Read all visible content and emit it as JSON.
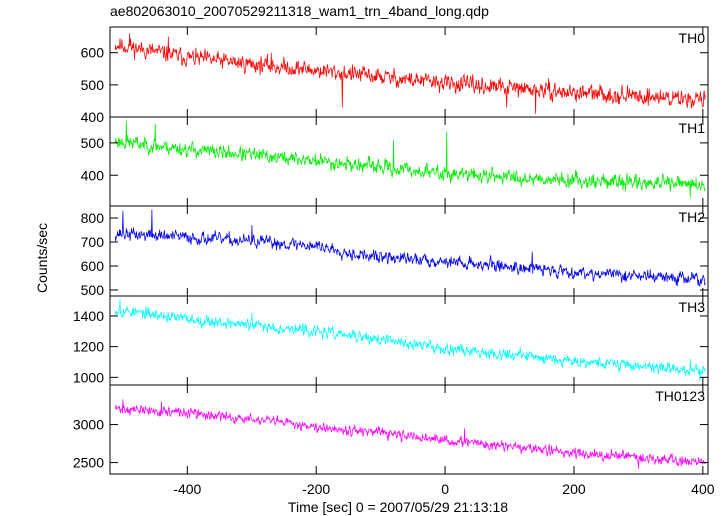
{
  "chart_data": {
    "type": "line",
    "title": "ae802063010_20070529211318_wam1_trn_4band_long.qdp",
    "xlabel": "Time [sec] 0 = 2007/05/29 21:13:18",
    "ylabel": "Counts/sec",
    "xlim": [
      -520,
      408
    ],
    "x_ticks": [
      -400,
      -200,
      0,
      200,
      400
    ],
    "grid": false,
    "panels": [
      {
        "name": "TH0",
        "color": "#ff0000",
        "ylim": [
          400,
          680
        ],
        "y_ticks": [
          400,
          500,
          600
        ],
        "noise": 28,
        "seed": 11,
        "anchors": [
          [
            -510,
            625
          ],
          [
            -400,
            585
          ],
          [
            -200,
            545
          ],
          [
            0,
            505
          ],
          [
            200,
            475
          ],
          [
            400,
            455
          ]
        ],
        "features": [
          [
            -490,
            660
          ],
          [
            -430,
            650
          ],
          [
            -270,
            600
          ],
          [
            -160,
            430
          ],
          [
            95,
            430
          ],
          [
            140,
            410
          ]
        ]
      },
      {
        "name": "TH1",
        "color": "#00ee00",
        "ylim": [
          305,
          580
        ],
        "y_ticks": [
          400,
          500
        ],
        "noise": 24,
        "seed": 23,
        "anchors": [
          [
            -510,
            505
          ],
          [
            -400,
            480
          ],
          [
            -200,
            445
          ],
          [
            0,
            405
          ],
          [
            200,
            385
          ],
          [
            400,
            370
          ]
        ],
        "features": [
          [
            -495,
            570
          ],
          [
            -450,
            560
          ],
          [
            -80,
            510
          ],
          [
            2,
            535
          ],
          [
            380,
            330
          ]
        ]
      },
      {
        "name": "TH2",
        "color": "#0000ee",
        "ylim": [
          475,
          850
        ],
        "y_ticks": [
          500,
          600,
          700,
          800
        ],
        "noise": 28,
        "seed": 37,
        "anchors": [
          [
            -510,
            735
          ],
          [
            -400,
            720
          ],
          [
            -200,
            685
          ],
          [
            -120,
            640
          ],
          [
            0,
            620
          ],
          [
            200,
            575
          ],
          [
            400,
            545
          ]
        ],
        "features": [
          [
            -500,
            830
          ],
          [
            -455,
            835
          ],
          [
            -300,
            770
          ],
          [
            135,
            660
          ],
          [
            360,
            515
          ]
        ]
      },
      {
        "name": "TH3",
        "color": "#00ffff",
        "ylim": [
          950,
          1530
        ],
        "y_ticks": [
          1000,
          1200,
          1400
        ],
        "noise": 40,
        "seed": 53,
        "anchors": [
          [
            -510,
            1440
          ],
          [
            -400,
            1380
          ],
          [
            -200,
            1300
          ],
          [
            0,
            1190
          ],
          [
            200,
            1110
          ],
          [
            400,
            1040
          ]
        ],
        "features": [
          [
            -505,
            1510
          ],
          [
            -300,
            1420
          ],
          [
            380,
            1120
          ],
          [
            395,
            975
          ]
        ]
      },
      {
        "name": "TH0123",
        "color": "#ff00ff",
        "ylim": [
          2350,
          3520
        ],
        "y_ticks": [
          2500,
          3000
        ],
        "noise": 70,
        "seed": 71,
        "anchors": [
          [
            -510,
            3210
          ],
          [
            -400,
            3150
          ],
          [
            -200,
            2980
          ],
          [
            0,
            2790
          ],
          [
            200,
            2630
          ],
          [
            400,
            2510
          ]
        ],
        "features": [
          [
            -500,
            3330
          ],
          [
            -440,
            3300
          ],
          [
            30,
            2950
          ],
          [
            300,
            2420
          ]
        ]
      }
    ]
  }
}
